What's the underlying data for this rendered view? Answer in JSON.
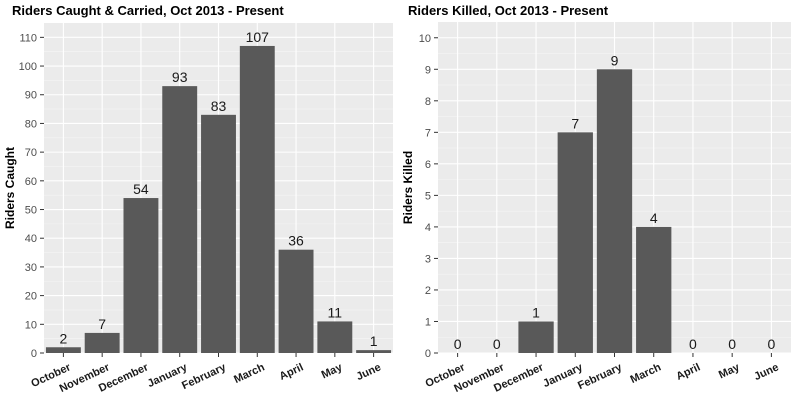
{
  "colors": {
    "panel_bg": "#ebebeb",
    "grid_major": "#ffffff",
    "grid_minor": "#f5f5f5",
    "bar": "#595959",
    "tick": "#333333"
  },
  "chart_data": [
    {
      "type": "bar",
      "title": "Riders Caught & Carried, Oct 2013 - Present",
      "xlabel": "",
      "ylabel": "Riders Caught",
      "categories": [
        "October",
        "November",
        "December",
        "January",
        "February",
        "March",
        "April",
        "May",
        "June"
      ],
      "values": [
        2,
        7,
        54,
        93,
        83,
        107,
        36,
        11,
        1
      ],
      "ylim": [
        0,
        115
      ],
      "yticks": [
        0,
        10,
        20,
        30,
        40,
        50,
        60,
        70,
        80,
        90,
        100,
        110
      ],
      "grid": true,
      "legend": "none"
    },
    {
      "type": "bar",
      "title": "Riders Killed, Oct 2013 - Present",
      "xlabel": "",
      "ylabel": "Riders Killed",
      "categories": [
        "October",
        "November",
        "December",
        "January",
        "February",
        "March",
        "April",
        "May",
        "June"
      ],
      "values": [
        0,
        0,
        1,
        7,
        9,
        4,
        0,
        0,
        0
      ],
      "ylim": [
        0,
        10.5
      ],
      "yticks": [
        0,
        1,
        2,
        3,
        4,
        5,
        6,
        7,
        8,
        9,
        10
      ],
      "grid": true,
      "legend": "none"
    }
  ]
}
